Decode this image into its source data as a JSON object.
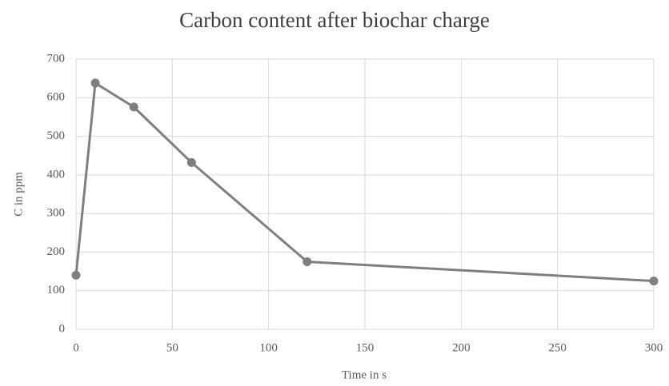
{
  "chart_data": {
    "type": "line",
    "title": "Carbon content after biochar charge",
    "x_label": "Time in s",
    "y_label": "C in ppm",
    "x": [
      0,
      10,
      30,
      60,
      120,
      300
    ],
    "series": [
      {
        "name": "C",
        "color": "#7f7f7f",
        "values": [
          140,
          638,
          576,
          432,
          175,
          125
        ]
      }
    ],
    "xlim": [
      0,
      300
    ],
    "xticks": [
      0,
      50,
      100,
      150,
      200,
      250,
      300
    ],
    "ylim": [
      0,
      700
    ],
    "yticks": [
      0,
      100,
      200,
      300,
      400,
      500,
      600,
      700
    ],
    "grid": true
  }
}
